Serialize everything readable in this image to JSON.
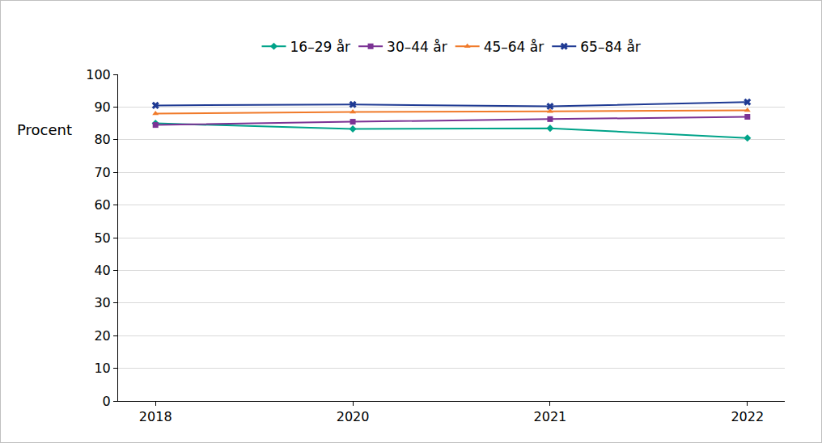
{
  "chart_data": {
    "type": "line",
    "y_label": "Procent",
    "categories": [
      "2018",
      "2020",
      "2021",
      "2022"
    ],
    "series": [
      {
        "name": "16–29 år",
        "color": "#00a389",
        "marker": "diamond",
        "values": [
          85,
          83.3,
          83.5,
          80.5
        ]
      },
      {
        "name": "30–44 år",
        "color": "#7b3294",
        "marker": "square",
        "values": [
          84.5,
          85.5,
          86.3,
          87
        ]
      },
      {
        "name": "45–64 år",
        "color": "#f07a2a",
        "marker": "triangle-up",
        "values": [
          88,
          88.5,
          88.7,
          89
        ]
      },
      {
        "name": "65–84 år",
        "color": "#1f3a93",
        "marker": "x",
        "values": [
          90.5,
          90.8,
          90.2,
          91.5
        ]
      }
    ],
    "ylim": [
      0,
      100
    ],
    "yticks": [
      0,
      10,
      20,
      30,
      40,
      50,
      60,
      70,
      80,
      90,
      100
    ],
    "grid": true,
    "legend": "top"
  }
}
